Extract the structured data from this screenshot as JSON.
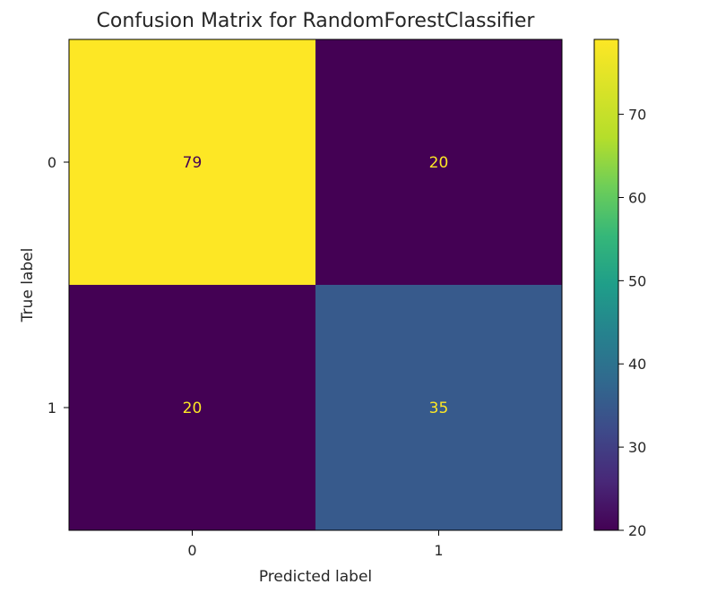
{
  "chart_data": {
    "type": "heatmap",
    "title": "Confusion Matrix for RandomForestClassifier",
    "xlabel": "Predicted label",
    "ylabel": "True label",
    "x_tick_labels": [
      "0",
      "1"
    ],
    "y_tick_labels": [
      "0",
      "1"
    ],
    "matrix": [
      [
        79,
        20
      ],
      [
        20,
        35
      ]
    ],
    "colormap": "viridis",
    "colorbar": {
      "vmin": 20,
      "vmax": 79,
      "ticks": [
        20,
        30,
        40,
        50,
        60,
        70
      ]
    },
    "text_color_on_dark": "#fde725",
    "text_color_on_light": "#440154"
  }
}
